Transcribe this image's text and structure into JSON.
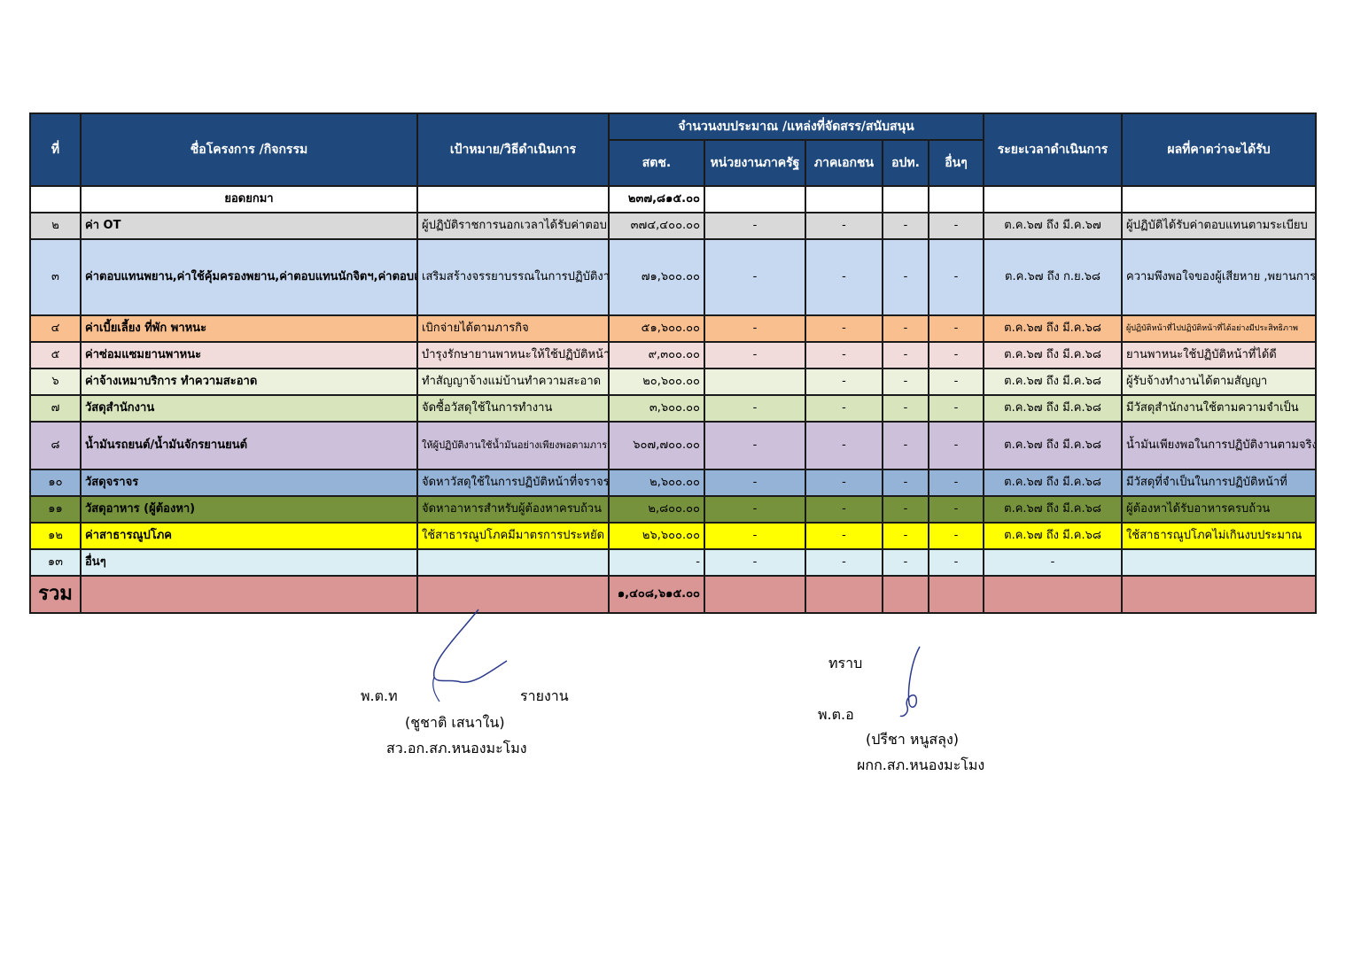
{
  "headers": {
    "no": "ที่",
    "project": "ชื่อโครงการ /กิจกรรม",
    "goal": "เป้าหมาย/วิธีดำเนินการ",
    "budget_group": "จำนวนงบประมาณ /แหล่งที่จัดสรร/สนับสนุน",
    "s1": "สตช.",
    "s2": "หน่วยงานภาครัฐ",
    "s3": "ภาคเอกชน",
    "s4": "อปท.",
    "s5": "อื่นๆ",
    "period": "ระยะเวลาดำเนินการ",
    "result": "ผลที่คาดว่าจะได้รับ"
  },
  "carry": {
    "label": "ยอดยกมา",
    "amount": "๒๓๗,๘๑๕.๐๐"
  },
  "rows": [
    {
      "no": "๒",
      "project": "ค่า OT",
      "goal": "ผู้ปฏิบัติราชการนอกเวลาได้รับค่าตอบแทน",
      "amount": "๓๗๔,๔๐๐.๐๐",
      "s2": "-",
      "s3": "-",
      "s4": "-",
      "s5": "-",
      "period": "ต.ค.๖๗ ถึง มี.ค.๖๗",
      "result": "ผู้ปฏิบัติได้รับค่าตอบแทนตามระเบียบ",
      "bg": "#d9d9d9"
    },
    {
      "no": "๓",
      "project": "ค่าตอบแทนพยาน,ค่าใช้คุ้มครองพยาน,ค่าตอบแทนนักจิตฯ,ค่าตอบแทน จพง.ชัญสูตรพลิกศพ,ค่าใช้จ่ายในการส่งหมายเรียกพยาน",
      "goal": "เสริมสร้างจรรยาบรรณในการปฏิบัติงานสอบสวน",
      "amount": "๗๑,๖๐๐.๐๐",
      "s2": "-",
      "s3": "-",
      "s4": "-",
      "s5": "-",
      "period": "ต.ค.๖๗ ถึง ก.ย.๖๘",
      "result": "ความพึงพอใจของผู้เสียหาย ,พยานการดำเนินมาตรการคุ้มครองสิทธิ์",
      "bg": "#c6d9f0"
    },
    {
      "no": "๔",
      "project": "ค่าเบี้ยเลี้ยง ที่พัก พาหนะ",
      "goal": "เบิกจ่ายได้ตามภารกิจ",
      "amount": "๕๑,๖๐๐.๐๐",
      "s2": "-",
      "s3": "-",
      "s4": "-",
      "s5": "-",
      "period": "ต.ค.๖๗ ถึง มี.ค.๖๘",
      "result": "ผู้ปฏิบัติหน้าที่ไปปฏิบัติหน้าที่ได้อย่างมีประสิทธิภาพ",
      "bg": "#f9bf8f"
    },
    {
      "no": "๕",
      "project": "ค่าซ่อมแซมยานพาหนะ",
      "goal": "บำรุงรักษายานพาหนะให้ใช้ปฏิบัติหน้าที่ได้",
      "amount": "๙,๓๐๐.๐๐",
      "s2": "-",
      "s3": "-",
      "s4": "-",
      "s5": "-",
      "period": "ต.ค.๖๗ ถึง มี.ค.๖๘",
      "result": "ยานพาหนะใช้ปฏิบัติหน้าที่ได้ดี",
      "bg": "#f2dcdb"
    },
    {
      "no": "๖",
      "project": "ค่าจ้างเหมาบริการ ทำความสะอาด",
      "goal": "ทำสัญญาจ้างแม่บ้านทำความสะอาด",
      "amount": "๒๐,๖๐๐.๐๐",
      "s2": "",
      "s3": "-",
      "s4": "-",
      "s5": "-",
      "period": "ต.ค.๖๗ ถึง มี.ค.๖๘",
      "result": "ผู้รับจ้างทำงานได้ตามสัญญา",
      "bg": "#ebf1dd"
    },
    {
      "no": "๗",
      "project": "วัสดุสำนักงาน",
      "goal": "จัดซื้อวัสดุใช้ในการทำงาน",
      "amount": "๓,๖๐๐.๐๐",
      "s2": "-",
      "s3": "-",
      "s4": "-",
      "s5": "-",
      "period": "ต.ค.๖๗ ถึง มี.ค.๖๘",
      "result": "มีวัสดุสำนักงานใช้ตามความจำเป็น",
      "bg": "#d7e4bc"
    },
    {
      "no": "๘",
      "project": "น้ำมันรถยนต์/น้ำมันจักรยานยนต์",
      "goal": "ให้ผู้ปฏิบัติงานใช้น้ำมันอย่างเพียงพอตามภารกิจ",
      "amount": "๖๐๗,๗๐๐.๐๐",
      "s2": "-",
      "s3": "-",
      "s4": "-",
      "s5": "-",
      "period": "ต.ค.๖๗ ถึง มี.ค.๖๘",
      "result": "น้ำมันเพียงพอในการปฏิบัติงานตามจริง",
      "bg": "#ccc0da"
    },
    {
      "no": "๑๐",
      "project": "วัสดุจราจร",
      "goal": "จัดหาวัสดุใช้ในการปฏิบัติหน้าที่จราจร",
      "amount": "๒,๖๐๐.๐๐",
      "s2": "-",
      "s3": "-",
      "s4": "-",
      "s5": "-",
      "period": "ต.ค.๖๗ ถึง มี.ค.๖๘",
      "result": "มีวัสดุที่จำเป็นในการปฏิบัติหน้าที่",
      "bg": "#95b3d7"
    },
    {
      "no": "๑๑",
      "project": "วัสดุอาหาร (ผู้ต้องหา)",
      "goal": "จัดหาอาหารสำหรับผู้ต้องหาครบถ้วน",
      "amount": "๒,๘๐๐.๐๐",
      "s2": "-",
      "s3": "-",
      "s4": "-",
      "s5": "-",
      "period": "ต.ค.๖๗ ถึง มี.ค.๖๘",
      "result": "ผู้ต้องหาได้รับอาหารครบถ้วน",
      "bg": "#76923c"
    },
    {
      "no": "๑๒",
      "project": "ค่าสาธารณูปโภค",
      "goal": "ใช้สาธารณูปโภคมีมาตรการประหยัด",
      "amount": "๒๖,๖๐๐.๐๐",
      "s2": "-",
      "s3": "-",
      "s4": "-",
      "s5": "-",
      "period": "ต.ค.๖๗ ถึง มี.ค.๖๘",
      "result": "ใช้สาธารณูปโภคไม่เกินงบประมาณ",
      "bg": "#ffff00"
    },
    {
      "no": "๑๓",
      "project": "อื่นๆ",
      "goal": "",
      "amount": "-",
      "s2": "-",
      "s3": "-",
      "s4": "-",
      "s5": "-",
      "period": "-",
      "result": "",
      "bg": "#daeef3"
    }
  ],
  "total": {
    "label": "รวม",
    "amount": "๑,๔๐๘,๖๑๕.๐๐"
  },
  "signatures": {
    "left_rank": "พ.ต.ท",
    "left_action": "รายงาน",
    "left_name": "(ชูชาติ   เสนาใน)",
    "left_title": "สว.อก.สภ.หนองมะโมง",
    "right_ack": "ทราบ",
    "right_rank": "พ.ต.อ",
    "right_name": "(ปรีชา   หนูสลุง)",
    "right_title": "ผกก.สภ.หนองมะโมง"
  }
}
